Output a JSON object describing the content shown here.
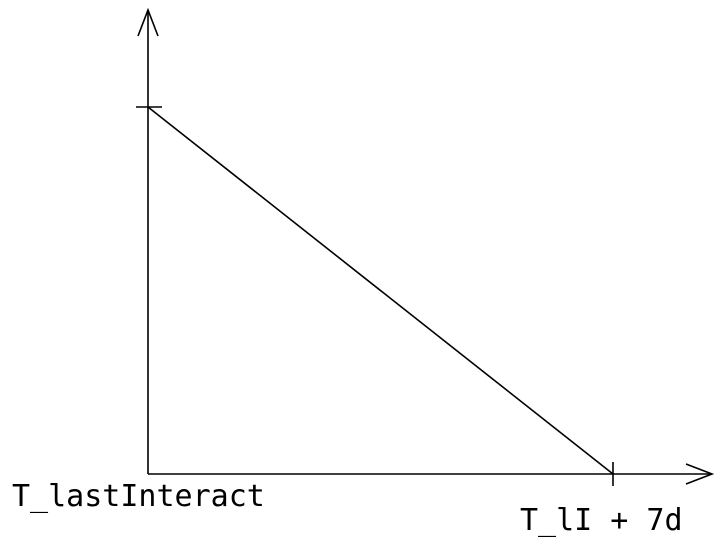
{
  "chart_data": {
    "type": "line",
    "title": "",
    "xlabel": "",
    "ylabel": "",
    "x_ticks": [
      "T_lastInteract",
      "T_lI + 7d"
    ],
    "series": [
      {
        "x": [
          "T_lastInteract",
          "T_lI + 7d"
        ],
        "y": [
          1,
          0
        ]
      }
    ],
    "ylim": [
      0,
      1.2
    ],
    "grid": false,
    "legend": "none",
    "colors": {
      "line": "#000000",
      "axes": "#000000"
    }
  }
}
